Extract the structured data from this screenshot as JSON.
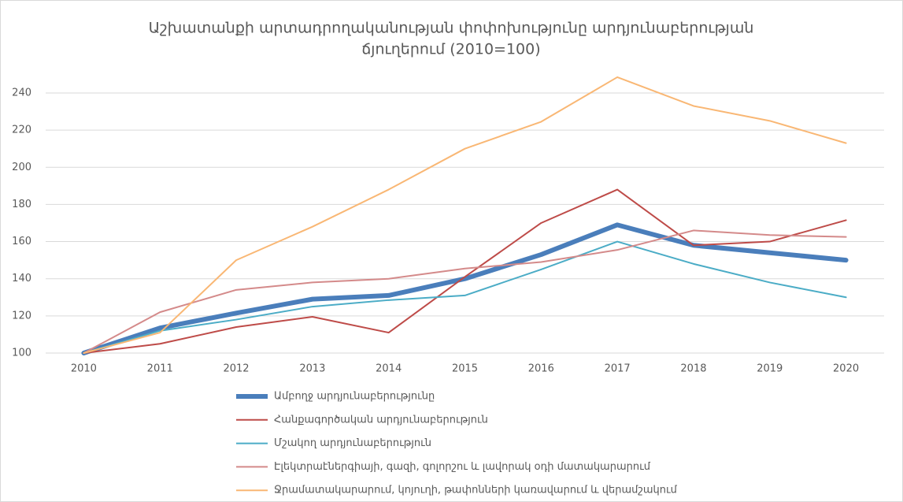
{
  "chart_data": {
    "type": "line",
    "title": [
      "Աշխատանքի  արտադրողականության  փոփոխությունը  արդյունաբերության",
      "ճյուղերում (2010=100)"
    ],
    "categories": [
      "2010",
      "2011",
      "2012",
      "2013",
      "2014",
      "2015",
      "2016",
      "2017",
      "2018",
      "2019",
      "2020"
    ],
    "ylim": [
      100,
      250
    ],
    "yticks": [
      100,
      120,
      140,
      160,
      180,
      200,
      220,
      240
    ],
    "grid": true,
    "legend": "bottom",
    "series": [
      {
        "name": "Ամբողջ արդյունաբերությունը",
        "color": "#4a7ebb",
        "width": 6,
        "values": [
          100,
          113.5,
          121.5,
          129,
          131,
          140,
          153,
          169,
          158,
          154,
          150
        ]
      },
      {
        "name": "Հանքագործական արդյունաբերություն",
        "color": "#be4b48",
        "width": 2,
        "values": [
          100,
          105,
          114,
          119.5,
          111,
          141,
          170,
          188,
          158,
          160,
          171.5
        ]
      },
      {
        "name": "Մշակող արդյունաբերություն",
        "color": "#4bacc6",
        "width": 2,
        "values": [
          100,
          112,
          118,
          125,
          128.5,
          131,
          145,
          160,
          148,
          138,
          130
        ]
      },
      {
        "name": "Էլեկտրաէներգիայի, գազի, գոլորշու և լավորակ օդի մատակարարում",
        "color": "#d48a8a",
        "width": 2,
        "values": [
          100,
          122,
          134,
          138,
          140,
          145.5,
          149,
          155.5,
          166,
          163.5,
          162.5
        ]
      },
      {
        "name": "Ջրամատակարարում, կոյուղի, թափոնների կառավարում և վերամշակում",
        "color": "#f9b774",
        "width": 2,
        "values": [
          100,
          111,
          150,
          168,
          188,
          210,
          224.5,
          248.5,
          233,
          225,
          213
        ]
      }
    ]
  }
}
